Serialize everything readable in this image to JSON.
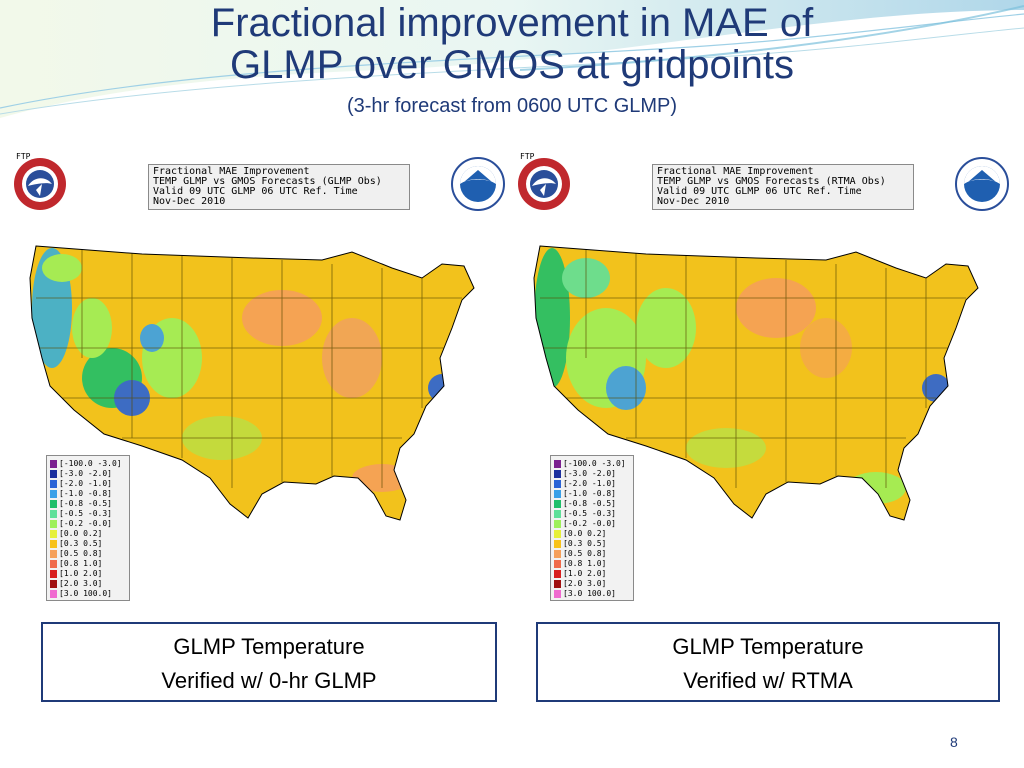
{
  "slide": {
    "title_line1": "Fractional improvement in MAE of",
    "title_line2": "GLMP over GMOS at gridpoints",
    "subtitle": "(3-hr forecast from 0600 UTC GLMP)",
    "page_number": "8"
  },
  "panels": [
    {
      "tag": "FTP",
      "info_lines": [
        "Fractional MAE Improvement",
        "TEMP GLMP vs GMOS Forecasts (GLMP Obs)",
        "Valid 09 UTC GLMP 06 UTC Ref. Time",
        "Nov-Dec 2010"
      ],
      "caption_line1": "GLMP Temperature",
      "caption_line2": "Verified w/ 0-hr GLMP"
    },
    {
      "tag": "FTP",
      "info_lines": [
        "Fractional MAE Improvement",
        "TEMP GLMP vs GMOS Forecasts (RTMA Obs)",
        "Valid 09 UTC GLMP 06 UTC Ref. Time",
        "Nov-Dec 2010"
      ],
      "caption_line1": "GLMP Temperature",
      "caption_line2": "Verified w/ RTMA"
    }
  ],
  "legend": [
    {
      "label": "[-100.0 -3.0]",
      "color": "#7a1f8f"
    },
    {
      "label": "[-3.0 -2.0]",
      "color": "#1b2f9e"
    },
    {
      "label": "[-2.0 -1.0]",
      "color": "#2a63d6"
    },
    {
      "label": "[-1.0 -0.8]",
      "color": "#3aa0e8"
    },
    {
      "label": "[-0.8 -0.5]",
      "color": "#1fbf6a"
    },
    {
      "label": "[-0.5 -0.3]",
      "color": "#5fe09a"
    },
    {
      "label": "[-0.2 -0.0]",
      "color": "#9ef05a"
    },
    {
      "label": "[0.0 0.2]",
      "color": "#e6f03a"
    },
    {
      "label": "[0.3 0.5]",
      "color": "#f7c21a"
    },
    {
      "label": "[0.5 0.8]",
      "color": "#f5a05a"
    },
    {
      "label": "[0.8 1.0]",
      "color": "#f06a4a"
    },
    {
      "label": "[1.0 2.0]",
      "color": "#d81e1e"
    },
    {
      "label": "[2.0 3.0]",
      "color": "#a01010"
    },
    {
      "label": "[3.0 100.0]",
      "color": "#f06ad0"
    }
  ],
  "colors": {
    "title": "#1f3a78",
    "land_base": "#f2c21c",
    "map_border": "#5a4a00"
  },
  "icons": [
    "nws-logo-icon",
    "noaa-logo-icon"
  ]
}
